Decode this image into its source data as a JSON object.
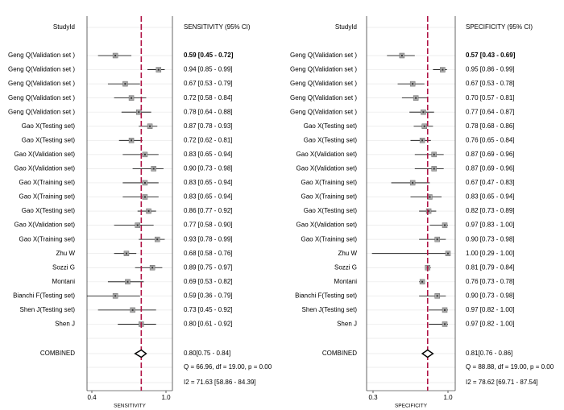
{
  "colors": {
    "text": "#000000",
    "line": "#000000",
    "grid": "#e8e8e8",
    "reference_line": "#b01445",
    "marker_fill": "#a8a8a8",
    "background": "#ffffff"
  },
  "chart_data": [
    {
      "type": "forest",
      "title": "",
      "xlabel": "SENSITIVITY",
      "study_header": "StudyId",
      "value_header": "SENSITIVITY (95% CI)",
      "xlim": [
        0.4,
        1.0
      ],
      "xticks": [
        {
          "value": 0.4,
          "label": "0.4"
        },
        {
          "value": 1.0,
          "label": "1.0"
        }
      ],
      "reference_value": 0.8,
      "studies": [
        {
          "name": "Geng Q(Validation set )",
          "est": 0.59,
          "lo": 0.45,
          "hi": 0.72,
          "label": "0.59 [0.45 - 0.72]"
        },
        {
          "name": "Geng Q(Validation set )",
          "est": 0.94,
          "lo": 0.85,
          "hi": 0.99,
          "label": "0.94 [0.85 - 0.99]"
        },
        {
          "name": "Geng Q(Validation set )",
          "est": 0.67,
          "lo": 0.53,
          "hi": 0.79,
          "label": "0.67 [0.53 - 0.79]"
        },
        {
          "name": "Geng Q(Validation set )",
          "est": 0.72,
          "lo": 0.58,
          "hi": 0.84,
          "label": "0.72 [0.58 - 0.84]"
        },
        {
          "name": "Geng Q(Validation set )",
          "est": 0.78,
          "lo": 0.64,
          "hi": 0.88,
          "label": "0.78 [0.64 - 0.88]"
        },
        {
          "name": "Gao X(Testing set)",
          "est": 0.87,
          "lo": 0.78,
          "hi": 0.93,
          "label": "0.87 [0.78 - 0.93]"
        },
        {
          "name": "Gao X(Testing set)",
          "est": 0.72,
          "lo": 0.62,
          "hi": 0.81,
          "label": "0.72 [0.62 - 0.81]"
        },
        {
          "name": "Gao X(Validation set)",
          "est": 0.83,
          "lo": 0.65,
          "hi": 0.94,
          "label": "0.83 [0.65 - 0.94]"
        },
        {
          "name": "Gao X(Validation set)",
          "est": 0.9,
          "lo": 0.73,
          "hi": 0.98,
          "label": "0.90 [0.73 - 0.98]"
        },
        {
          "name": "Gao X(Training set)",
          "est": 0.83,
          "lo": 0.65,
          "hi": 0.94,
          "label": "0.83 [0.65 - 0.94]"
        },
        {
          "name": "Gao X(Training set)",
          "est": 0.83,
          "lo": 0.65,
          "hi": 0.94,
          "label": "0.83 [0.65 - 0.94]"
        },
        {
          "name": "Gao X(Testing set)",
          "est": 0.86,
          "lo": 0.77,
          "hi": 0.92,
          "label": "0.86 [0.77 - 0.92]"
        },
        {
          "name": "Gao X(Validation set)",
          "est": 0.77,
          "lo": 0.58,
          "hi": 0.9,
          "label": "0.77 [0.58 - 0.90]"
        },
        {
          "name": "Gao X(Training set)",
          "est": 0.93,
          "lo": 0.78,
          "hi": 0.99,
          "label": "0.93 [0.78 - 0.99]"
        },
        {
          "name": "Zhu W",
          "est": 0.68,
          "lo": 0.58,
          "hi": 0.76,
          "label": "0.68 [0.58 - 0.76]"
        },
        {
          "name": "Sozzi G",
          "est": 0.89,
          "lo": 0.75,
          "hi": 0.97,
          "label": "0.89 [0.75 - 0.97]"
        },
        {
          "name": "Montani",
          "est": 0.69,
          "lo": 0.53,
          "hi": 0.82,
          "label": "0.69 [0.53 - 0.82]"
        },
        {
          "name": "Bianchi F(Testing set)",
          "est": 0.59,
          "lo": 0.36,
          "hi": 0.79,
          "label": "0.59 [0.36 - 0.79]"
        },
        {
          "name": "Shen J(Testing set)",
          "est": 0.73,
          "lo": 0.45,
          "hi": 0.92,
          "label": "0.73 [0.45 - 0.92]"
        },
        {
          "name": "Shen J",
          "est": 0.8,
          "lo": 0.61,
          "hi": 0.92,
          "label": "0.80 [0.61 - 0.92]"
        }
      ],
      "combined": {
        "name": "COMBINED",
        "est": 0.8,
        "lo": 0.75,
        "hi": 0.84,
        "label": "0.80[0.75 - 0.84]"
      },
      "stats": [
        "Q = 66.96, df = 19.00, p =  0.00",
        "I2 = 71.63 [58.86 - 84.39]"
      ]
    },
    {
      "type": "forest",
      "title": "",
      "xlabel": "SPECIFICITY",
      "study_header": "StudyId",
      "value_header": "SPECIFICITY (95% CI)",
      "xlim": [
        0.3,
        1.0
      ],
      "xticks": [
        {
          "value": 0.3,
          "label": "0.3"
        },
        {
          "value": 1.0,
          "label": "1.0"
        }
      ],
      "reference_value": 0.81,
      "studies": [
        {
          "name": "Geng Q(Validation set )",
          "est": 0.57,
          "lo": 0.43,
          "hi": 0.69,
          "label": "0.57 [0.43 - 0.69]"
        },
        {
          "name": "Geng Q(Validation set )",
          "est": 0.95,
          "lo": 0.86,
          "hi": 0.99,
          "label": "0.95 [0.86 - 0.99]"
        },
        {
          "name": "Geng Q(Validation set )",
          "est": 0.67,
          "lo": 0.53,
          "hi": 0.78,
          "label": "0.67 [0.53 - 0.78]"
        },
        {
          "name": "Geng Q(Validation set )",
          "est": 0.7,
          "lo": 0.57,
          "hi": 0.81,
          "label": "0.70 [0.57 - 0.81]"
        },
        {
          "name": "Geng Q(Validation set )",
          "est": 0.77,
          "lo": 0.64,
          "hi": 0.87,
          "label": "0.77 [0.64 - 0.87]"
        },
        {
          "name": "Gao X(Testing set)",
          "est": 0.78,
          "lo": 0.68,
          "hi": 0.86,
          "label": "0.78 [0.68 - 0.86]"
        },
        {
          "name": "Gao X(Testing set)",
          "est": 0.76,
          "lo": 0.65,
          "hi": 0.84,
          "label": "0.76 [0.65 - 0.84]"
        },
        {
          "name": "Gao X(Validation set)",
          "est": 0.87,
          "lo": 0.69,
          "hi": 0.96,
          "label": "0.87 [0.69 - 0.96]"
        },
        {
          "name": "Gao X(Validation set)",
          "est": 0.87,
          "lo": 0.69,
          "hi": 0.96,
          "label": "0.87 [0.69 - 0.96]"
        },
        {
          "name": "Gao X(Training set)",
          "est": 0.67,
          "lo": 0.47,
          "hi": 0.83,
          "label": "0.67 [0.47 - 0.83]"
        },
        {
          "name": "Gao X(Training set)",
          "est": 0.83,
          "lo": 0.65,
          "hi": 0.94,
          "label": "0.83 [0.65 - 0.94]"
        },
        {
          "name": "Gao X(Testing set)",
          "est": 0.82,
          "lo": 0.73,
          "hi": 0.89,
          "label": "0.82 [0.73 - 0.89]"
        },
        {
          "name": "Gao X(Validation set)",
          "est": 0.97,
          "lo": 0.83,
          "hi": 1.0,
          "label": "0.97 [0.83 - 1.00]"
        },
        {
          "name": "Gao X(Training set)",
          "est": 0.9,
          "lo": 0.73,
          "hi": 0.98,
          "label": "0.90 [0.73 - 0.98]"
        },
        {
          "name": "Zhu W",
          "est": 1.0,
          "lo": 0.29,
          "hi": 1.0,
          "label": "1.00 [0.29 - 1.00]"
        },
        {
          "name": "Sozzi G",
          "est": 0.81,
          "lo": 0.79,
          "hi": 0.84,
          "label": "0.81 [0.79 - 0.84]"
        },
        {
          "name": "Montani",
          "est": 0.76,
          "lo": 0.73,
          "hi": 0.78,
          "label": "0.76 [0.73 - 0.78]"
        },
        {
          "name": "Bianchi F(Testing set)",
          "est": 0.9,
          "lo": 0.73,
          "hi": 0.98,
          "label": "0.90 [0.73 - 0.98]"
        },
        {
          "name": "Shen J(Testing set)",
          "est": 0.97,
          "lo": 0.82,
          "hi": 1.0,
          "label": "0.97 [0.82 - 1.00]"
        },
        {
          "name": "Shen J",
          "est": 0.97,
          "lo": 0.82,
          "hi": 1.0,
          "label": "0.97 [0.82 - 1.00]"
        }
      ],
      "combined": {
        "name": "COMBINED",
        "est": 0.81,
        "lo": 0.76,
        "hi": 0.86,
        "label": "0.81[0.76 - 0.86]"
      },
      "stats": [
        "Q = 88.88, df = 19.00, p =  0.00",
        "I2 = 78.62 [69.71 - 87.54]"
      ]
    }
  ]
}
